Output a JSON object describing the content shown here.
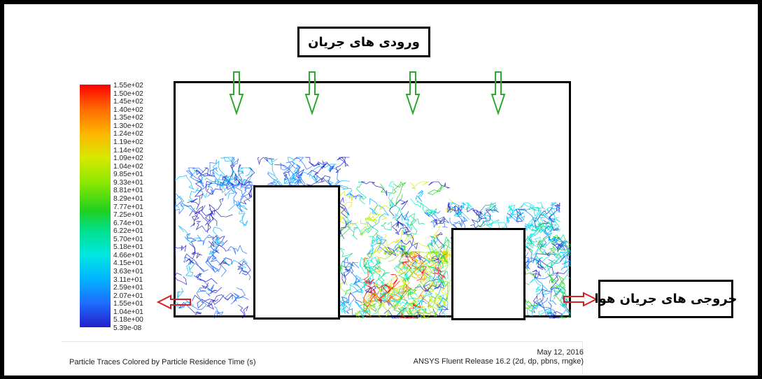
{
  "labels": {
    "inlets": "ورودی های جریان",
    "outlets": "خروجی های جریان هوا"
  },
  "colorbar": {
    "ticks": [
      "1.55e+02",
      "1.50e+02",
      "1.45e+02",
      "1.40e+02",
      "1.35e+02",
      "1.30e+02",
      "1.24e+02",
      "1.19e+02",
      "1.14e+02",
      "1.09e+02",
      "1.04e+02",
      "9.85e+01",
      "9.33e+01",
      "8.81e+01",
      "8.29e+01",
      "7.77e+01",
      "7.25e+01",
      "6.74e+01",
      "6.22e+01",
      "5.70e+01",
      "5.18e+01",
      "4.66e+01",
      "4.15e+01",
      "3.63e+01",
      "3.11e+01",
      "2.59e+01",
      "2.07e+01",
      "1.55e+01",
      "1.04e+01",
      "5.18e+00",
      "5.39e-08"
    ],
    "colors": [
      "#ff0000",
      "#ff6a00",
      "#ffb400",
      "#d8e800",
      "#8fe800",
      "#1fd01f",
      "#00e08a",
      "#00e8e0",
      "#00b4ff",
      "#1f6cff",
      "#2020c8"
    ]
  },
  "caption": {
    "title": "Particle Traces Colored by Particle Residence Time (s)",
    "date": "May 12, 2016",
    "release": "ANSYS Fluent Release 16.2 (2d, dp, pbns, rngke)"
  },
  "arrows": {
    "inlet_color": "#2ea82e",
    "outlet_color": "#d62020"
  }
}
